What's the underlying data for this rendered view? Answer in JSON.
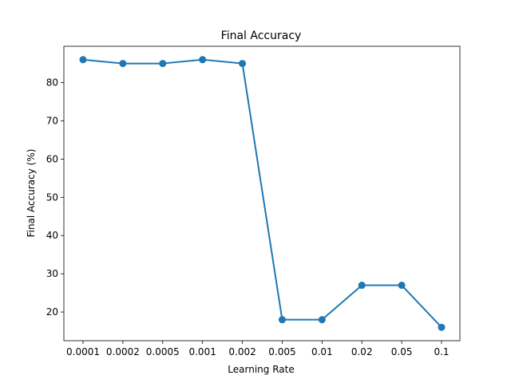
{
  "chart_data": {
    "type": "line",
    "title": "Final Accuracy",
    "xlabel": "Learning Rate",
    "ylabel": "Final Accuracy (%)",
    "categories": [
      "0.0001",
      "0.0002",
      "0.0005",
      "0.001",
      "0.002",
      "0.005",
      "0.01",
      "0.02",
      "0.05",
      "0.1"
    ],
    "series": [
      {
        "values": [
          86,
          85,
          85,
          86,
          85,
          18,
          18,
          27,
          27,
          16
        ]
      }
    ],
    "yticks": [
      20,
      30,
      40,
      50,
      60,
      70,
      80
    ],
    "ylim": [
      12.5,
      89.5
    ],
    "grid": false,
    "colors": {
      "line": "#1f77b4",
      "marker": "#1f77b4"
    }
  }
}
